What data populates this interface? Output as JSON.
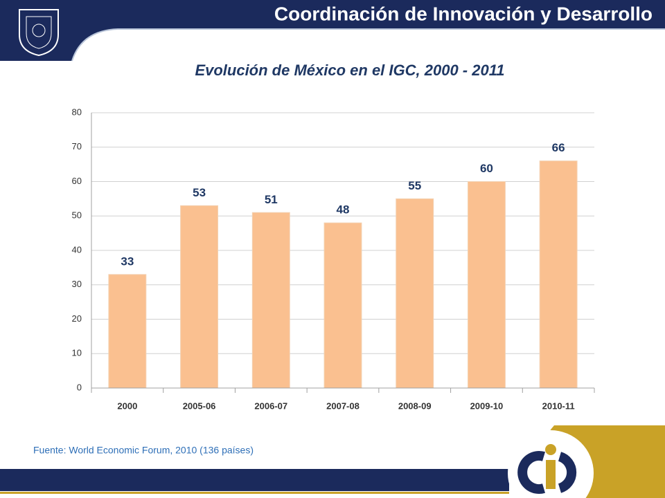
{
  "header": {
    "title": "Coordinación de Innovación y Desarrollo"
  },
  "chart_data": {
    "type": "bar",
    "title": "Evolución de México en el IGC, 2000 - 2011",
    "categories": [
      "2000",
      "2005-06",
      "2006-07",
      "2007-08",
      "2008-09",
      "2009-10",
      "2010-11"
    ],
    "values": [
      33,
      53,
      51,
      48,
      55,
      60,
      66
    ],
    "color": "#fac090",
    "ylim": [
      0,
      80
    ],
    "yticks": [
      0,
      10,
      20,
      30,
      40,
      50,
      60,
      70,
      80
    ],
    "grid": true
  },
  "footer": {
    "source": "Fuente: World Economic Forum, 2010 (136 países)"
  }
}
